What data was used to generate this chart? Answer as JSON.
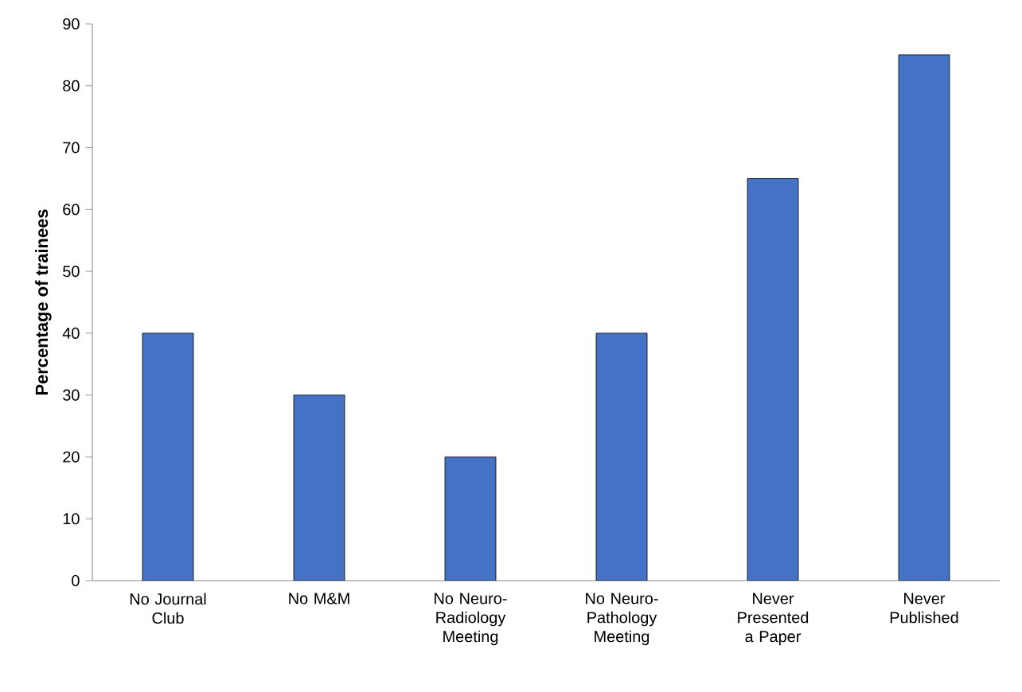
{
  "chart_data": {
    "type": "bar",
    "ylabel": "Percentage of trainees",
    "categories": [
      "No Journal Club",
      "No M&M",
      "No Neuro-Radiology Meeting",
      "No Neuro-Pathology Meeting",
      "Never Presented a Paper",
      "Never Published"
    ],
    "values": [
      40,
      30,
      20,
      40,
      65,
      85
    ],
    "color": "#4472c4",
    "ylim": [
      0,
      90
    ],
    "yticks": [
      0,
      10,
      20,
      30,
      40,
      50,
      60,
      70,
      80,
      90
    ],
    "grid": false
  }
}
